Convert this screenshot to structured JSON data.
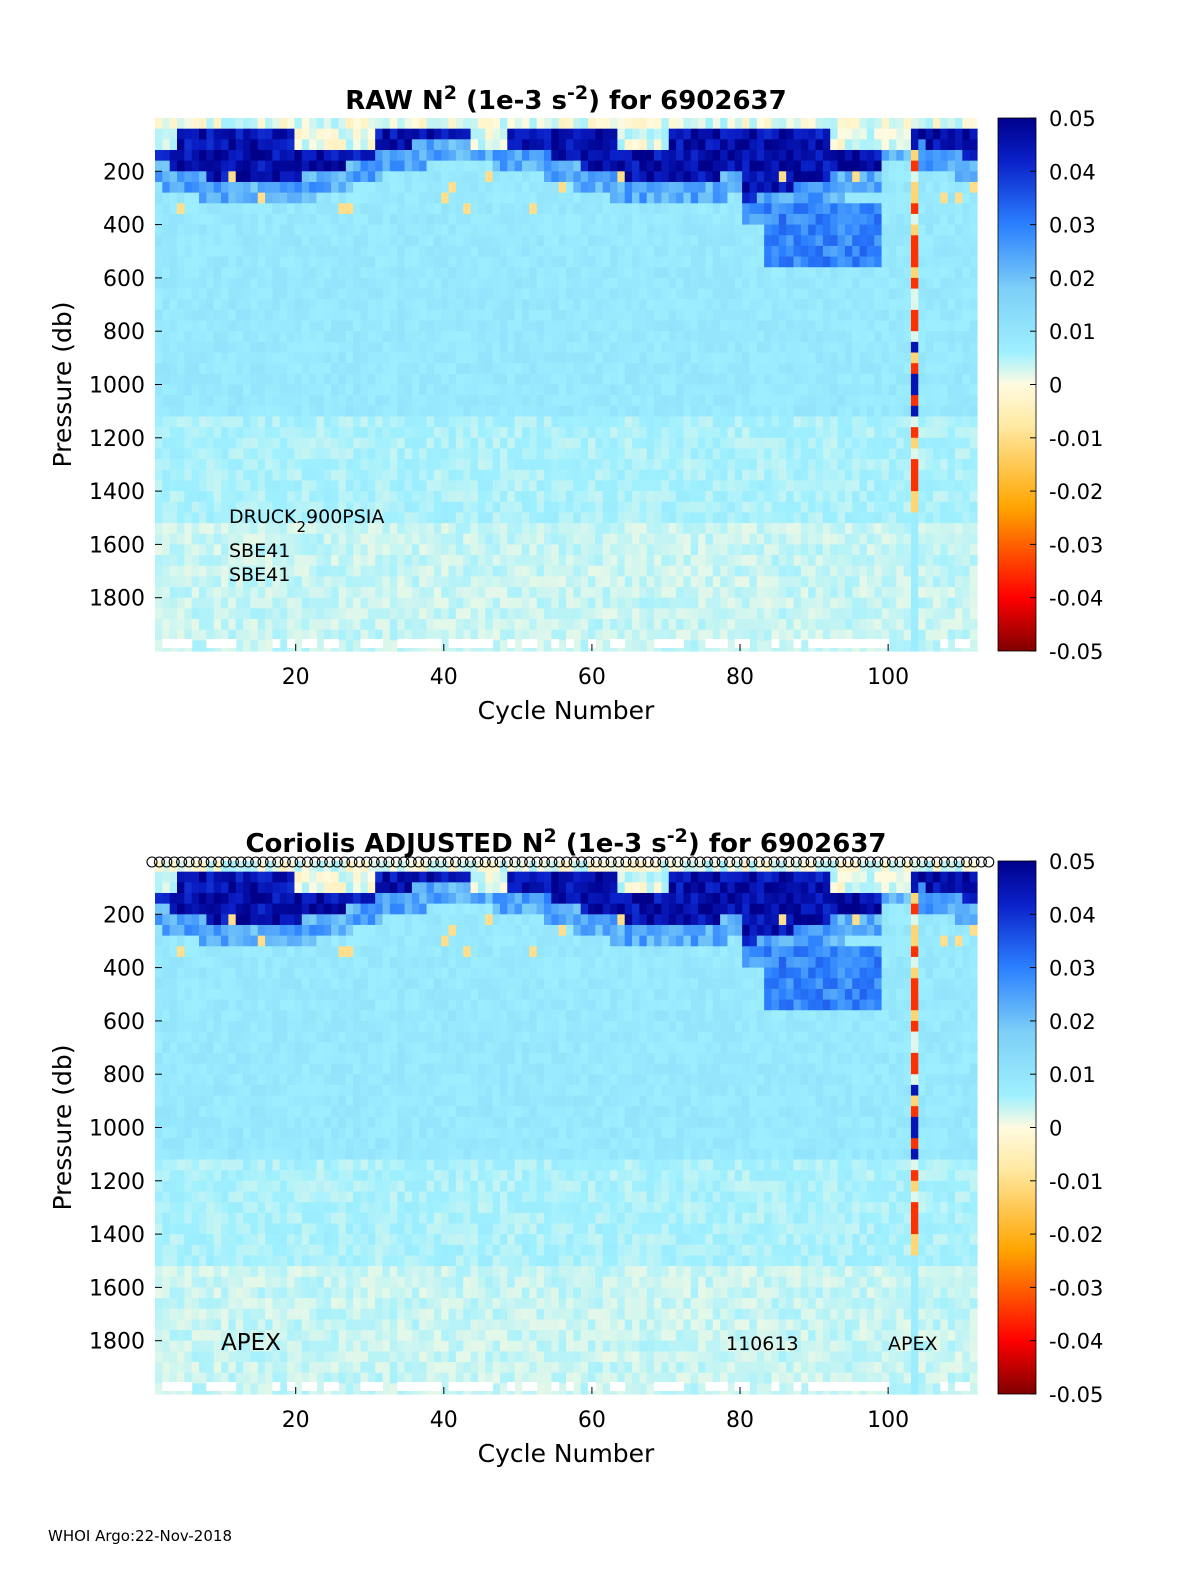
{
  "footer": "WHOI Argo:22-Nov-2018",
  "colorbar": {
    "ticks": [
      "0.05",
      "0.04",
      "0.03",
      "0.02",
      "0.01",
      "0",
      "-0.01",
      "-0.02",
      "-0.03",
      "-0.04",
      "-0.05"
    ],
    "range": [
      -0.05,
      0.05
    ],
    "colormap": [
      "#7f0000",
      "#ff0000",
      "#ffa500",
      "#fffbe0",
      "#9ff0ff",
      "#2b80ff",
      "#00008b"
    ]
  },
  "chart_data": [
    {
      "type": "heatmap",
      "title_parts": [
        "RAW N",
        "2",
        " (1e-3 s",
        "-2",
        ") for 6902637"
      ],
      "xlabel": "Cycle Number",
      "ylabel": "Pressure (db)",
      "xticks": [
        "20",
        "40",
        "60",
        "80",
        "100"
      ],
      "yticks": [
        "200",
        "400",
        "600",
        "800",
        "1000",
        "1200",
        "1400",
        "1600",
        "1800"
      ],
      "xlim": [
        1,
        112
      ],
      "ylim": [
        0,
        2000
      ],
      "annotations": [
        "DRUCK",
        "2",
        "900PSIA",
        "SBE41",
        "SBE41"
      ]
    },
    {
      "type": "heatmap",
      "title_parts": [
        "Coriolis  ADJUSTED N",
        "2",
        " (1e-3 s",
        "-2",
        ") for 6902637"
      ],
      "xlabel": "Cycle Number",
      "ylabel": "Pressure (db)",
      "xticks": [
        "20",
        "40",
        "60",
        "80",
        "100"
      ],
      "yticks": [
        "200",
        "400",
        "600",
        "800",
        "1000",
        "1200",
        "1400",
        "1600",
        "1800"
      ],
      "xlim": [
        1,
        112
      ],
      "ylim": [
        0,
        2000
      ],
      "annotations": [
        "APEX",
        "110613",
        "APEX"
      ]
    }
  ]
}
